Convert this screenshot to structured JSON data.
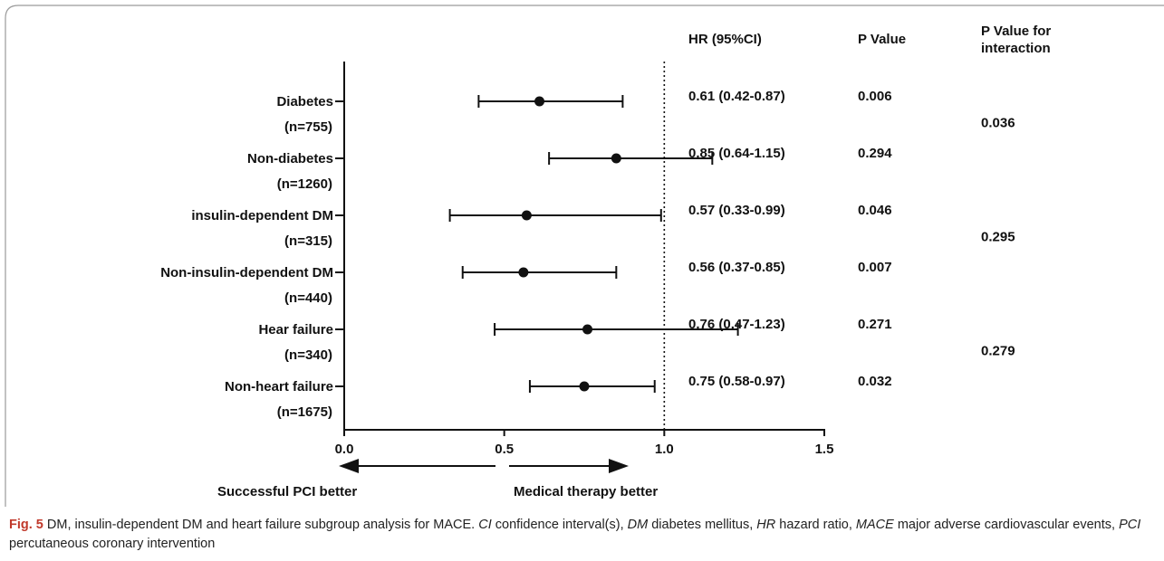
{
  "caption": {
    "figure_label": "Fig. 5",
    "parts": [
      {
        "text": "  DM, insulin-dependent DM and heart failure subgroup analysis for MACE. ",
        "italic": false
      },
      {
        "text": "CI",
        "italic": true
      },
      {
        "text": " confidence interval(s), ",
        "italic": false
      },
      {
        "text": "DM",
        "italic": true
      },
      {
        "text": " diabetes mellitus, ",
        "italic": false
      },
      {
        "text": "HR",
        "italic": true
      },
      {
        "text": " hazard ratio, ",
        "italic": false
      },
      {
        "text": "MACE",
        "italic": true
      },
      {
        "text": " major adverse cardiovascular events, ",
        "italic": false
      },
      {
        "text": "PCI",
        "italic": true
      },
      {
        "text": " percutaneous coronary intervention",
        "italic": false
      }
    ]
  },
  "chart_data": {
    "type": "forest",
    "xlim": [
      0.0,
      1.5
    ],
    "x_ticks": [
      "0.0",
      "0.5",
      "1.0",
      "1.5"
    ],
    "reference_line": 1.0,
    "direction_labels": {
      "left": "Successful PCI better",
      "right": "Medical therapy better"
    },
    "columns": {
      "hr": "HR (95%CI)",
      "p": "P Value",
      "p_interaction": [
        "P Value for",
        "interaction"
      ]
    },
    "rows": [
      {
        "label": "Diabetes",
        "n": "(n=755)",
        "hr": 0.61,
        "lower": 0.42,
        "upper": 0.87,
        "hr_text": "0.61 (0.42-0.87)",
        "p_text": "0.006"
      },
      {
        "label": "Non-diabetes",
        "n": "(n=1260)",
        "hr": 0.85,
        "lower": 0.64,
        "upper": 1.15,
        "hr_text": "0.85 (0.64-1.15)",
        "p_text": "0.294"
      },
      {
        "label": "insulin-dependent DM",
        "n": "(n=315)",
        "hr": 0.57,
        "lower": 0.33,
        "upper": 0.99,
        "hr_text": "0.57 (0.33-0.99)",
        "p_text": "0.046"
      },
      {
        "label": "Non-insulin-dependent DM",
        "n": "(n=440)",
        "hr": 0.56,
        "lower": 0.37,
        "upper": 0.85,
        "hr_text": "0.56 (0.37-0.85)",
        "p_text": "0.007"
      },
      {
        "label": "Hear failure",
        "n": "(n=340)",
        "hr": 0.76,
        "lower": 0.47,
        "upper": 1.23,
        "hr_text": "0.76 (0.47-1.23)",
        "p_text": "0.271"
      },
      {
        "label": "Non-heart failure",
        "n": "(n=1675)",
        "hr": 0.75,
        "lower": 0.58,
        "upper": 0.97,
        "hr_text": "0.75 (0.58-0.97)",
        "p_text": "0.032"
      }
    ],
    "interaction_p": [
      "0.036",
      "0.295",
      "0.279"
    ]
  }
}
